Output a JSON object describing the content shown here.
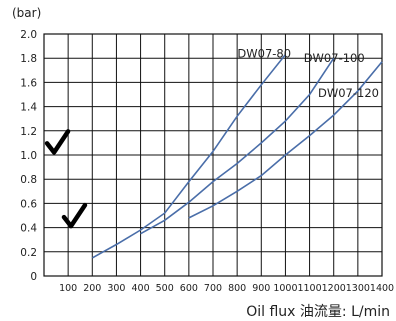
{
  "chart_data": {
    "type": "line",
    "title": "",
    "ylabel": "(bar)",
    "xlabel": "Oil flux 油流量: L/min",
    "xlim": [
      0,
      1400
    ],
    "ylim": [
      0,
      2.0
    ],
    "x_ticks": [
      "100",
      "200",
      "300",
      "400",
      "500",
      "600",
      "700",
      "800",
      "900",
      "1000",
      "1100",
      "1200",
      "1300",
      "1400"
    ],
    "y_ticks": [
      "0",
      "0.2",
      "0.4",
      "0.6",
      "0.8",
      "1.0",
      "1.2",
      "1.4",
      "1.6",
      "1.8",
      "2.0"
    ],
    "grid": true,
    "series": [
      {
        "name": "DW07-80",
        "color": "#4a6ea9",
        "points": [
          [
            200,
            0.15
          ],
          [
            300,
            0.26
          ],
          [
            400,
            0.38
          ],
          [
            500,
            0.52
          ],
          [
            600,
            0.78
          ],
          [
            700,
            1.03
          ],
          [
            800,
            1.32
          ],
          [
            900,
            1.58
          ],
          [
            1000,
            1.83
          ]
        ]
      },
      {
        "name": "DW07-100",
        "color": "#4a6ea9",
        "points": [
          [
            400,
            0.35
          ],
          [
            500,
            0.46
          ],
          [
            600,
            0.61
          ],
          [
            700,
            0.78
          ],
          [
            800,
            0.93
          ],
          [
            900,
            1.1
          ],
          [
            1000,
            1.28
          ],
          [
            1100,
            1.5
          ],
          [
            1200,
            1.8
          ]
        ]
      },
      {
        "name": "DW07-120",
        "color": "#4a6ea9",
        "points": [
          [
            600,
            0.48
          ],
          [
            700,
            0.58
          ],
          [
            800,
            0.7
          ],
          [
            900,
            0.83
          ],
          [
            1000,
            1.0
          ],
          [
            1100,
            1.16
          ],
          [
            1200,
            1.33
          ],
          [
            1300,
            1.53
          ],
          [
            1400,
            1.77
          ]
        ]
      }
    ],
    "checkmarks": [
      {
        "icon": "checkmark-icon",
        "x": 50,
        "y": 1.08
      },
      {
        "icon": "checkmark-icon",
        "x": 120,
        "y": 0.47
      }
    ]
  }
}
